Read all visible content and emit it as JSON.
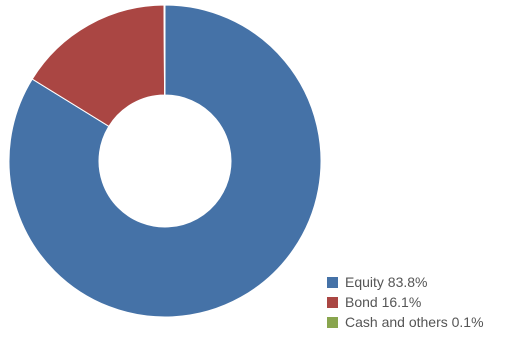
{
  "chart_data": {
    "type": "pie",
    "subtype": "donut",
    "slices": [
      {
        "label": "Equity",
        "value": 83.8,
        "color": "#4572a7"
      },
      {
        "label": "Bond",
        "value": 16.1,
        "color": "#aa4643"
      },
      {
        "label": "Cash and others",
        "value": 0.1,
        "color": "#89a54e"
      }
    ],
    "legend": {
      "position": "bottom-right",
      "items": [
        {
          "text": "Equity 83.8%",
          "color": "#4572a7"
        },
        {
          "text": "Bond 16.1%",
          "color": "#aa4643"
        },
        {
          "text": "Cash and others 0.1%",
          "color": "#89a54e"
        }
      ]
    }
  }
}
